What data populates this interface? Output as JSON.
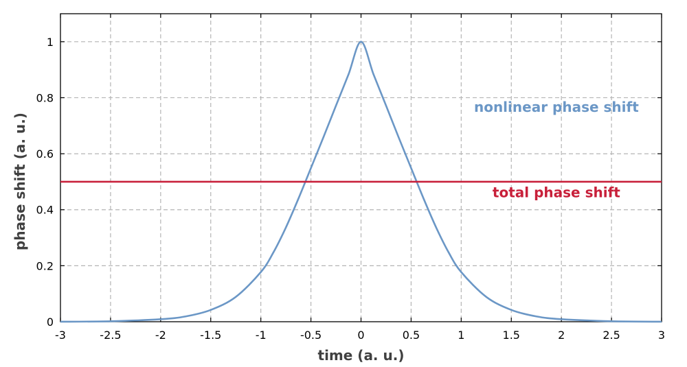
{
  "chart_data": {
    "type": "line",
    "xlabel": "time (a. u.)",
    "ylabel": "phase shift (a. u.)",
    "xlim": [
      -3,
      3
    ],
    "ylim": [
      0,
      1.1
    ],
    "grid": true,
    "x_ticks": [
      -3,
      -2.5,
      -2,
      -1.5,
      -1,
      -0.5,
      0,
      0.5,
      1,
      1.5,
      2,
      2.5,
      3
    ],
    "x_tick_labels": [
      "-3",
      "-2.5",
      "-2",
      "-1.5",
      "-1",
      "-0.5",
      "0",
      "0.5",
      "1",
      "1.5",
      "2",
      "2.5",
      "3"
    ],
    "y_ticks": [
      0,
      0.2,
      0.4,
      0.6,
      0.8,
      1
    ],
    "y_tick_labels": [
      "0",
      "0.2",
      "0.4",
      "0.6",
      "0.8",
      "1"
    ],
    "series": [
      {
        "name": "nonlinear phase shift",
        "color": "#6b97c6",
        "x": [
          -3,
          -2.5,
          -2,
          -1.75,
          -1.5,
          -1.25,
          -1,
          -0.875,
          -0.75,
          -0.625,
          -0.5,
          -0.375,
          -0.25,
          -0.125,
          0,
          0.125,
          0.25,
          0.375,
          0.5,
          0.625,
          0.75,
          0.875,
          1,
          1.25,
          1.5,
          1.75,
          2,
          2.5,
          3
        ],
        "y": [
          0.0001,
          0.0017,
          0.009,
          0.019,
          0.0421,
          0.0887,
          0.1773,
          0.2473,
          0.3365,
          0.4393,
          0.5488,
          0.6589,
          0.7718,
          0.8831,
          1.0,
          0.8831,
          0.7718,
          0.6589,
          0.5488,
          0.4393,
          0.3365,
          0.2473,
          0.1773,
          0.0887,
          0.0421,
          0.019,
          0.009,
          0.0017,
          0.0001
        ]
      },
      {
        "name": "total phase shift",
        "color": "#c8203a",
        "x": [
          -3,
          3
        ],
        "y": [
          0.5,
          0.5
        ]
      }
    ],
    "annotations": [
      {
        "text": "nonlinear phase shift",
        "color": "#6b97c6",
        "x": 1.95,
        "y": 0.75
      },
      {
        "text": "total phase shift",
        "color": "#c8203a",
        "x": 1.95,
        "y": 0.445
      }
    ]
  }
}
